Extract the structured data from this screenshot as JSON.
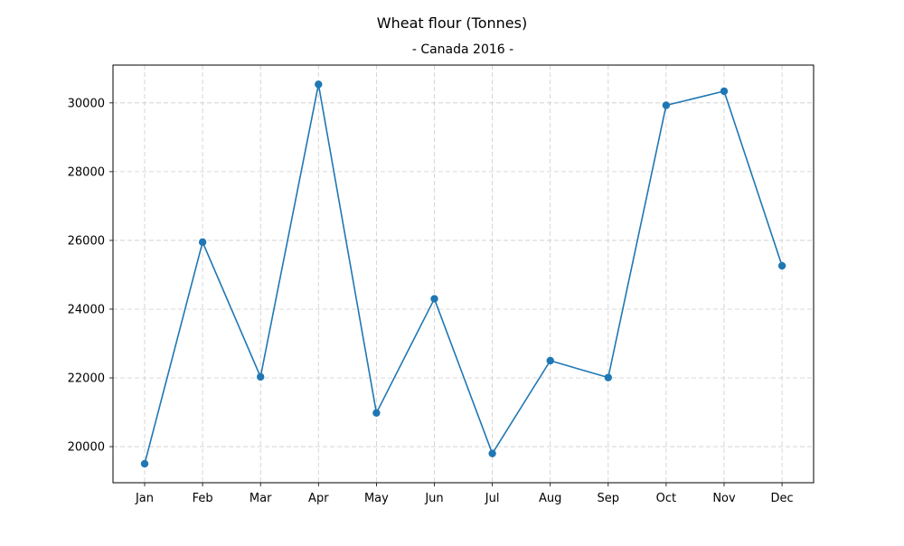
{
  "chart_data": {
    "type": "line",
    "title": "Wheat flour (Tonnes)",
    "subtitle": "- Canada 2016 -",
    "xlabel": "",
    "ylabel": "",
    "categories": [
      "Jan",
      "Feb",
      "Mar",
      "Apr",
      "May",
      "Jun",
      "Jul",
      "Aug",
      "Sep",
      "Oct",
      "Nov",
      "Dec"
    ],
    "series": [
      {
        "name": "Wheat flour",
        "values": [
          19500,
          25950,
          22030,
          30540,
          20980,
          24300,
          19800,
          22500,
          22010,
          29930,
          30340,
          25260
        ]
      }
    ],
    "ylim": [
      18950,
      31100
    ],
    "yticks": [
      20000,
      22000,
      24000,
      26000,
      28000,
      30000
    ],
    "grid": true,
    "legend": "none",
    "colors": {
      "line": "#1f77b4",
      "grid": "#cccccc",
      "axis": "#000000"
    }
  }
}
